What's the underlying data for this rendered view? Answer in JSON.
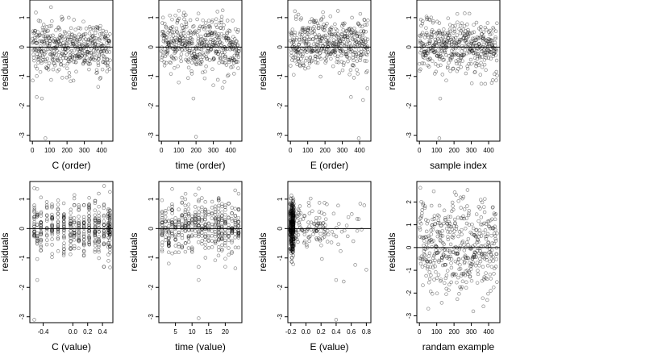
{
  "figure": {
    "panel_count": 8,
    "grid_rows": 2,
    "grid_cols": 4,
    "point_style": "open-circle",
    "point_color": "#000000",
    "point_opacity": 0.45,
    "reference_line_color": "#000000",
    "background": "#ffffff"
  },
  "chart_data": [
    {
      "type": "scatter",
      "xlabel": "C (order)",
      "ylabel": "residuals",
      "xlim": [
        -15,
        465
      ],
      "ylim": [
        -3.2,
        1.6
      ],
      "xticks": [
        0,
        100,
        200,
        300,
        400
      ],
      "xtick_labels": [
        "0",
        "100",
        "200",
        "300",
        "400"
      ],
      "yticks": [
        -3,
        -2,
        -1,
        0,
        1
      ],
      "ytick_labels": [
        "-3",
        "-2",
        "-1",
        "0",
        "1"
      ],
      "hline": 0,
      "points_generator": {
        "x_kind": "index",
        "n": 450,
        "y_center": 0,
        "y_spread": 0.45,
        "outliers": [
          [
            75,
            -3.1
          ],
          [
            25,
            -1.7
          ],
          [
            55,
            -1.75
          ],
          [
            380,
            -1.35
          ]
        ]
      }
    },
    {
      "type": "scatter",
      "xlabel": "time (order)",
      "ylabel": "residuals",
      "xlim": [
        -15,
        465
      ],
      "ylim": [
        -3.2,
        1.6
      ],
      "xticks": [
        0,
        100,
        200,
        300,
        400
      ],
      "xtick_labels": [
        "0",
        "100",
        "200",
        "300",
        "400"
      ],
      "yticks": [
        -3,
        -2,
        -1,
        0,
        1
      ],
      "ytick_labels": [
        "-3",
        "-2",
        "-1",
        "0",
        "1"
      ],
      "hline": 0,
      "points_generator": {
        "x_kind": "index",
        "n": 450,
        "y_center": 0.05,
        "y_spread": 0.45,
        "outliers": [
          [
            200,
            -3.05
          ],
          [
            185,
            -1.75
          ],
          [
            300,
            -1.3
          ]
        ]
      }
    },
    {
      "type": "scatter",
      "xlabel": "E (order)",
      "ylabel": "residuals",
      "xlim": [
        -15,
        465
      ],
      "ylim": [
        -3.2,
        1.6
      ],
      "xticks": [
        0,
        100,
        200,
        300,
        400
      ],
      "xtick_labels": [
        "0",
        "100",
        "200",
        "300",
        "400"
      ],
      "yticks": [
        -3,
        -2,
        -1,
        0,
        1
      ],
      "ytick_labels": [
        "-3",
        "-2",
        "-1",
        "0",
        "1"
      ],
      "hline": 0,
      "points_generator": {
        "x_kind": "index",
        "n": 450,
        "y_center": 0.1,
        "y_spread": 0.45,
        "outliers": [
          [
            395,
            -3.1
          ],
          [
            350,
            -1.7
          ],
          [
            420,
            -1.8
          ],
          [
            445,
            -1.4
          ]
        ]
      }
    },
    {
      "type": "scatter",
      "xlabel": "sample index",
      "ylabel": "residuals",
      "xlim": [
        -15,
        465
      ],
      "ylim": [
        -3.2,
        1.6
      ],
      "xticks": [
        0,
        100,
        200,
        300,
        400
      ],
      "xtick_labels": [
        "0",
        "100",
        "200",
        "300",
        "400"
      ],
      "yticks": [
        -3,
        -2,
        -1,
        0,
        1
      ],
      "ytick_labels": [
        "-3",
        "-2",
        "-1",
        "0",
        "1"
      ],
      "hline": 0,
      "points_generator": {
        "x_kind": "index",
        "n": 450,
        "y_center": 0.05,
        "y_spread": 0.45,
        "outliers": [
          [
            115,
            -3.1
          ],
          [
            120,
            -1.75
          ],
          [
            380,
            -1.25
          ]
        ]
      }
    },
    {
      "type": "scatter",
      "xlabel": "C (value)",
      "ylabel": "residuals",
      "xlim": [
        -0.58,
        0.54
      ],
      "ylim": [
        -3.2,
        1.6
      ],
      "xticks": [
        -0.4,
        0.0,
        0.2,
        0.4
      ],
      "xtick_labels": [
        "-0.4",
        "0.0",
        "0.2",
        "0.4"
      ],
      "yticks": [
        -3,
        -2,
        -1,
        0,
        1
      ],
      "ytick_labels": [
        "-3",
        "-2",
        "-1",
        "0",
        "1"
      ],
      "hline": 0,
      "points_generator": {
        "x_kind": "levels",
        "levels": [
          -0.52,
          -0.48,
          -0.43,
          -0.35,
          -0.28,
          -0.2,
          -0.12,
          -0.03,
          0.02,
          0.08,
          0.15,
          0.22,
          0.3,
          0.35,
          0.42,
          0.48,
          0.5
        ],
        "n": 450,
        "y_center": 0,
        "y_spread": 0.45,
        "outliers": [
          [
            -0.52,
            -3.1
          ],
          [
            -0.48,
            -1.75
          ],
          [
            0.42,
            -1.3
          ]
        ]
      }
    },
    {
      "type": "scatter",
      "xlabel": "time (value)",
      "ylabel": "residuals",
      "xlim": [
        0,
        25
      ],
      "ylim": [
        -3.2,
        1.6
      ],
      "xticks": [
        5,
        10,
        15,
        20
      ],
      "xtick_labels": [
        "5",
        "10",
        "15",
        "20"
      ],
      "yticks": [
        -3,
        -2,
        -1,
        0,
        1
      ],
      "ytick_labels": [
        "-3",
        "-2",
        "-1",
        "0",
        "1"
      ],
      "hline": 0,
      "points_generator": {
        "x_kind": "levels",
        "levels": [
          1,
          2,
          3,
          4,
          5,
          6,
          7,
          8,
          9,
          10,
          11,
          12,
          13,
          14,
          15,
          16,
          17,
          18,
          19,
          20,
          21,
          22,
          23,
          24
        ],
        "n": 450,
        "y_center": 0.05,
        "y_spread": 0.45,
        "outliers": [
          [
            12,
            -3.05
          ],
          [
            12,
            -1.75
          ],
          [
            20,
            -1.3
          ]
        ]
      }
    },
    {
      "type": "scatter",
      "xlabel": "E (value)",
      "ylabel": "residuals",
      "xlim": [
        -0.24,
        0.86
      ],
      "ylim": [
        -3.2,
        1.6
      ],
      "xticks": [
        -0.2,
        0.0,
        0.2,
        0.4,
        0.6,
        0.8
      ],
      "xtick_labels": [
        "-0.2",
        "0.0",
        "0.2",
        "0.4",
        "0.6",
        "0.8"
      ],
      "yticks": [
        -3,
        -2,
        -1,
        0,
        1
      ],
      "ytick_labels": [
        "-3",
        "-2",
        "-1",
        "0",
        "1"
      ],
      "hline": 0,
      "points_generator": {
        "x_kind": "skewed",
        "x_min": -0.21,
        "x_max": 0.82,
        "n": 450,
        "y_center": 0.05,
        "y_spread": 0.45,
        "outliers": [
          [
            0.4,
            -3.1
          ],
          [
            0.4,
            -1.75
          ],
          [
            0.5,
            -1.8
          ],
          [
            0.8,
            -1.4
          ]
        ]
      }
    },
    {
      "type": "scatter",
      "xlabel": "randam example",
      "ylabel": "residuals",
      "xlim": [
        -15,
        465
      ],
      "ylim": [
        -3.3,
        2.9
      ],
      "xticks": [
        0,
        100,
        200,
        300,
        400
      ],
      "xtick_labels": [
        "0",
        "100",
        "200",
        "300",
        "400"
      ],
      "yticks": [
        -3,
        -2,
        -1,
        0,
        1,
        2
      ],
      "ytick_labels": [
        "-3",
        "-2",
        "-1",
        "0",
        "1",
        "2"
      ],
      "hline": 0,
      "points_generator": {
        "x_kind": "index",
        "n": 450,
        "y_center": 0,
        "y_spread": 1.0,
        "outliers": []
      }
    }
  ]
}
